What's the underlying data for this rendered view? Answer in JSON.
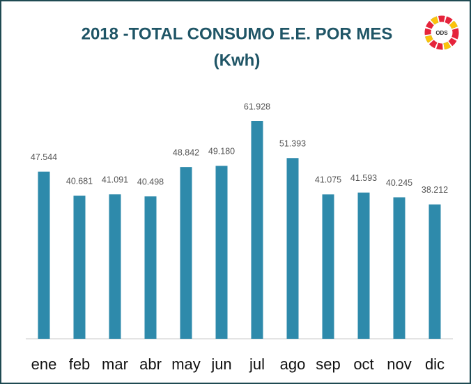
{
  "chart_data": {
    "type": "bar",
    "title": "2018 -TOTAL CONSUMO E.E. POR MES",
    "subtitle": "(Kwh)",
    "categories": [
      "ene",
      "feb",
      "mar",
      "abr",
      "may",
      "jun",
      "jul",
      "ago",
      "sep",
      "oct",
      "nov",
      "dic"
    ],
    "values": [
      47544,
      40681,
      41091,
      40498,
      48842,
      49180,
      61928,
      51393,
      41075,
      41593,
      40245,
      38212
    ],
    "value_labels": [
      "47.544",
      "40.681",
      "41.091",
      "40.498",
      "48.842",
      "49.180",
      "61.928",
      "51.393",
      "41.075",
      "41.593",
      "40.245",
      "38.212"
    ],
    "color": "#2e8aab"
  },
  "logo": {
    "label": "ODS"
  }
}
